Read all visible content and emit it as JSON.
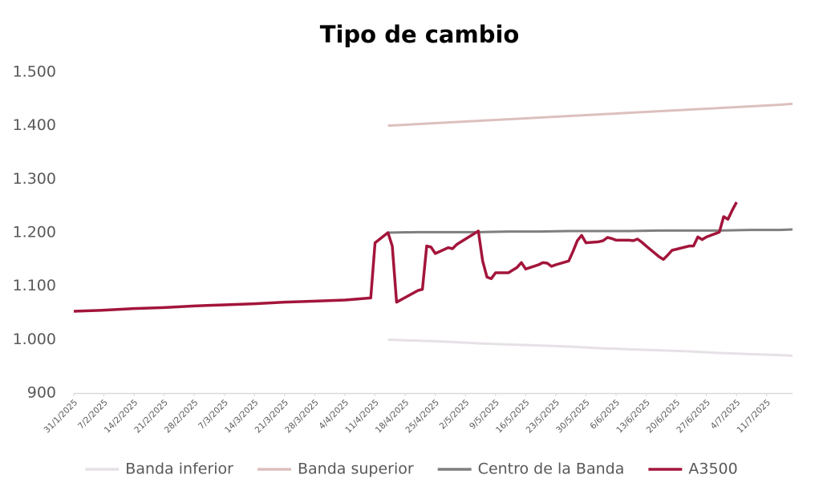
{
  "chart_data": {
    "type": "line",
    "title": "Tipo de cambio",
    "xlim": [
      "31/1/2025",
      "17/7/2025"
    ],
    "xticks": [
      "31/1/2025",
      "7/2/2025",
      "14/2/2025",
      "21/2/2025",
      "28/2/2025",
      "7/3/2025",
      "14/3/2025",
      "21/3/2025",
      "28/3/2025",
      "4/4/2025",
      "11/4/2025",
      "18/4/2025",
      "25/4/2025",
      "2/5/2025",
      "9/5/2025",
      "16/5/2025",
      "23/5/2025",
      "30/5/2025",
      "6/6/2025",
      "13/6/2025",
      "20/6/2025",
      "27/6/2025",
      "4/7/2025",
      "11/7/2025"
    ],
    "ylim": [
      900,
      1500
    ],
    "yticks": [
      900,
      {
        "value": 1000,
        "label": "1.000"
      },
      {
        "value": 1100,
        "label": "1.100"
      },
      {
        "value": 1200,
        "label": "1.200"
      },
      {
        "value": 1300,
        "label": "1.300"
      },
      {
        "value": 1400,
        "label": "1.400"
      },
      {
        "value": 1500,
        "label": "1.500"
      }
    ],
    "grid": false,
    "legend": "bottom",
    "series": [
      {
        "name": "Banda inferior",
        "color": "#e6e1e6",
        "x": [
          "14/4/2025",
          "21/4/2025",
          "28/4/2025",
          "5/5/2025",
          "12/5/2025",
          "19/5/2025",
          "26/5/2025",
          "2/6/2025",
          "9/6/2025",
          "16/6/2025",
          "23/6/2025",
          "30/6/2025",
          "7/7/2025",
          "14/7/2025",
          "17/7/2025"
        ],
        "values": [
          1000,
          998,
          996,
          993,
          991,
          989,
          987,
          984,
          982,
          980,
          978,
          975,
          973,
          971,
          970
        ]
      },
      {
        "name": "Banda superior",
        "color": "#dcc0be",
        "x": [
          "14/4/2025",
          "21/4/2025",
          "28/4/2025",
          "5/5/2025",
          "12/5/2025",
          "19/5/2025",
          "26/5/2025",
          "2/6/2025",
          "9/6/2025",
          "16/6/2025",
          "23/6/2025",
          "30/6/2025",
          "7/7/2025",
          "14/7/2025",
          "17/7/2025"
        ],
        "values": [
          1400,
          1403,
          1406,
          1409,
          1412,
          1415,
          1418,
          1421,
          1424,
          1427,
          1430,
          1433,
          1436,
          1439,
          1441
        ]
      },
      {
        "name": "Centro de la Banda",
        "color": "#7f7f7f",
        "x": [
          "14/4/2025",
          "21/4/2025",
          "28/4/2025",
          "5/5/2025",
          "12/5/2025",
          "19/5/2025",
          "26/5/2025",
          "2/6/2025",
          "9/6/2025",
          "16/6/2025",
          "23/6/2025",
          "30/6/2025",
          "7/7/2025",
          "14/7/2025",
          "17/7/2025"
        ],
        "values": [
          1200,
          1201,
          1201,
          1201,
          1202,
          1202,
          1203,
          1203,
          1203,
          1204,
          1204,
          1204,
          1205,
          1205,
          1206
        ]
      },
      {
        "name": "A3500",
        "color": "#a3153b",
        "x": [
          "31/1/2025",
          "7/2/2025",
          "14/2/2025",
          "21/2/2025",
          "28/2/2025",
          "7/3/2025",
          "14/3/2025",
          "21/3/2025",
          "28/3/2025",
          "4/4/2025",
          "10/4/2025",
          "11/4/2025",
          "14/4/2025",
          "15/4/2025",
          "16/4/2025",
          "21/4/2025",
          "22/4/2025",
          "23/4/2025",
          "24/4/2025",
          "25/4/2025",
          "28/4/2025",
          "29/4/2025",
          "30/4/2025",
          "5/5/2025",
          "6/5/2025",
          "7/5/2025",
          "8/5/2025",
          "9/5/2025",
          "12/5/2025",
          "13/5/2025",
          "14/5/2025",
          "15/5/2025",
          "16/5/2025",
          "19/5/2025",
          "20/5/2025",
          "21/5/2025",
          "22/5/2025",
          "23/5/2025",
          "26/5/2025",
          "27/5/2025",
          "28/5/2025",
          "29/5/2025",
          "30/5/2025",
          "2/6/2025",
          "3/6/2025",
          "4/6/2025",
          "5/6/2025",
          "6/6/2025",
          "9/6/2025",
          "10/6/2025",
          "11/6/2025",
          "12/6/2025",
          "13/6/2025",
          "16/6/2025",
          "17/6/2025",
          "18/6/2025",
          "19/6/2025",
          "23/6/2025",
          "24/6/2025",
          "25/6/2025",
          "26/6/2025",
          "27/6/2025",
          "30/6/2025",
          "1/7/2025",
          "2/7/2025",
          "3/7/2025",
          "4/7/2025"
        ],
        "values": [
          1053,
          1055,
          1058,
          1060,
          1063,
          1065,
          1067,
          1070,
          1072,
          1074,
          1078,
          1181,
          1200,
          1175,
          1070,
          1092,
          1094,
          1175,
          1173,
          1161,
          1172,
          1170,
          1178,
          1203,
          1147,
          1117,
          1114,
          1125,
          1125,
          1130,
          1135,
          1144,
          1132,
          1140,
          1144,
          1143,
          1137,
          1140,
          1147,
          1165,
          1185,
          1195,
          1181,
          1183,
          1185,
          1191,
          1189,
          1186,
          1186,
          1185,
          1188,
          1182,
          1175,
          1155,
          1150,
          1158,
          1167,
          1175,
          1175,
          1192,
          1187,
          1192,
          1201,
          1230,
          1225,
          1242,
          1257
        ]
      }
    ]
  }
}
